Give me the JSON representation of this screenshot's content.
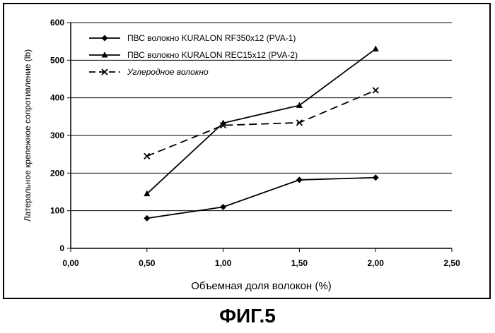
{
  "chart_data": {
    "type": "line",
    "xlabel": "Объемная доля волокон (%)",
    "ylabel": "Латеральное крепежное сопротивление (lb)",
    "xlim": [
      0,
      2.5
    ],
    "ylim": [
      0,
      600
    ],
    "x_ticks": [
      "0,00",
      "0,50",
      "1,00",
      "1,50",
      "2,00",
      "2,50"
    ],
    "y_ticks": [
      "0",
      "100",
      "200",
      "300",
      "400",
      "500",
      "600"
    ],
    "grid": "horizontal",
    "legend_position": "top-left",
    "series": [
      {
        "name": "ПВС волокно KURALON RF350x12 (PVA-1)",
        "style": "solid",
        "marker": "diamond",
        "x": [
          0.5,
          1.0,
          1.5,
          2.0
        ],
        "y": [
          80,
          110,
          182,
          188
        ]
      },
      {
        "name": "ПВС волокно KURALON REC15x12 (PVA-2)",
        "style": "solid",
        "marker": "triangle",
        "x": [
          0.5,
          1.0,
          1.5,
          2.0
        ],
        "y": [
          145,
          333,
          380,
          530
        ]
      },
      {
        "name": "Углеродное волокно",
        "style": "dashed",
        "marker": "x",
        "x": [
          0.5,
          1.0,
          1.5,
          2.0
        ],
        "y": [
          245,
          327,
          334,
          420
        ]
      }
    ]
  },
  "figure_label": "ФИГ.5"
}
